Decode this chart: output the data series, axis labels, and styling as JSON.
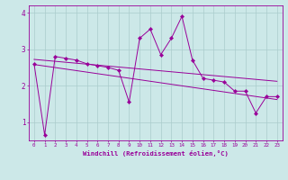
{
  "xlabel": "Windchill (Refroidissement éolien,°C)",
  "bg_color": "#cce8e8",
  "line_color": "#990099",
  "x_data": [
    0,
    1,
    2,
    3,
    4,
    5,
    6,
    7,
    8,
    9,
    10,
    11,
    12,
    13,
    14,
    15,
    16,
    17,
    18,
    19,
    20,
    21,
    22,
    23
  ],
  "y_data": [
    2.6,
    0.65,
    2.8,
    2.75,
    2.7,
    2.6,
    2.55,
    2.5,
    2.42,
    1.55,
    3.3,
    3.55,
    2.85,
    3.3,
    3.9,
    2.7,
    2.2,
    2.15,
    2.1,
    1.85,
    1.85,
    1.25,
    1.7,
    1.7
  ],
  "ylim": [
    0.5,
    4.2
  ],
  "xlim": [
    -0.5,
    23.5
  ],
  "yticks": [
    1,
    2,
    3,
    4
  ],
  "xticks": [
    0,
    1,
    2,
    3,
    4,
    5,
    6,
    7,
    8,
    9,
    10,
    11,
    12,
    13,
    14,
    15,
    16,
    17,
    18,
    19,
    20,
    21,
    22,
    23
  ],
  "grid_color": "#aacccc",
  "trend1_x": [
    0,
    23
  ],
  "trend1_y": [
    2.72,
    2.12
  ],
  "trend2_x": [
    0,
    23
  ],
  "trend2_y": [
    2.58,
    1.62
  ]
}
